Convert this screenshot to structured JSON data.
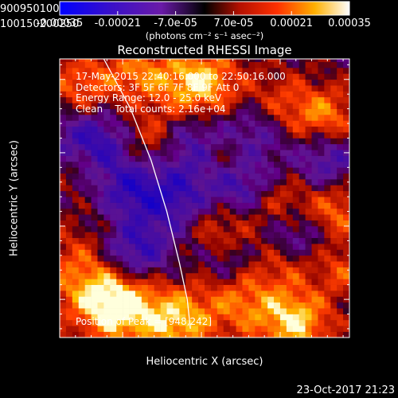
{
  "colorbar": {
    "tick_labels": [
      "-0.00035",
      "-0.00021",
      "-7.0e-05",
      "7.0e-05",
      "0.00021",
      "0.00035"
    ],
    "unit_label": "(photons cm⁻² s⁻¹ asec⁻²)",
    "range": [
      -0.00035,
      0.00035
    ]
  },
  "chart_data": {
    "type": "heatmap",
    "title": "Reconstructed RHESSI Image",
    "xlabel": "Heliocentric X (arcsec)",
    "ylabel": "Heliocentric Y (arcsec)",
    "xlim": [
      860,
      1044
    ],
    "ylim": [
      74,
      264
    ],
    "x_ticks": [
      900,
      950,
      1000
    ],
    "y_ticks": [
      100,
      150,
      200,
      250
    ],
    "x_tick_labels": [
      "900",
      "950",
      "1000"
    ],
    "y_tick_labels": [
      "100",
      "150",
      "200",
      "250"
    ],
    "limb_curve": [
      [
        888,
        266
      ],
      [
        905,
        230
      ],
      [
        918,
        195
      ],
      [
        928,
        160
      ],
      [
        936,
        125
      ],
      [
        941,
        100
      ],
      [
        943,
        80
      ]
    ],
    "hot_spots": [
      {
        "x": 898,
        "y": 96,
        "v": 1.0,
        "r": 18
      },
      {
        "x": 880,
        "y": 118,
        "v": 0.65,
        "r": 22
      },
      {
        "x": 935,
        "y": 85,
        "v": 0.8,
        "r": 16
      },
      {
        "x": 975,
        "y": 100,
        "v": 0.6,
        "r": 18
      },
      {
        "x": 1010,
        "y": 85,
        "v": 0.9,
        "r": 16
      },
      {
        "x": 948,
        "y": 246,
        "v": 1.0,
        "r": 18
      },
      {
        "x": 1000,
        "y": 230,
        "v": 0.55,
        "r": 16
      },
      {
        "x": 1030,
        "y": 225,
        "v": 0.6,
        "r": 14
      },
      {
        "x": 875,
        "y": 245,
        "v": 0.6,
        "r": 16
      },
      {
        "x": 910,
        "y": 255,
        "v": 0.55,
        "r": 14
      },
      {
        "x": 918,
        "y": 210,
        "v": 0.5,
        "r": 14
      },
      {
        "x": 872,
        "y": 190,
        "v": 0.45,
        "r": 12
      },
      {
        "x": 960,
        "y": 150,
        "v": 0.55,
        "r": 16
      },
      {
        "x": 1000,
        "y": 165,
        "v": 0.45,
        "r": 14
      },
      {
        "x": 1035,
        "y": 160,
        "v": 0.6,
        "r": 14
      },
      {
        "x": 1040,
        "y": 120,
        "v": 0.45,
        "r": 12
      },
      {
        "x": 1005,
        "y": 125,
        "v": 0.35,
        "r": 12
      },
      {
        "x": 965,
        "y": 200,
        "v": 0.4,
        "r": 12
      }
    ],
    "cold_spots": [
      {
        "x": 880,
        "y": 205,
        "v": 0.85,
        "r": 18
      },
      {
        "x": 905,
        "y": 130,
        "v": 0.95,
        "r": 16
      },
      {
        "x": 935,
        "y": 168,
        "v": 0.7,
        "r": 18
      },
      {
        "x": 945,
        "y": 210,
        "v": 0.6,
        "r": 16
      },
      {
        "x": 985,
        "y": 215,
        "v": 0.6,
        "r": 16
      },
      {
        "x": 975,
        "y": 175,
        "v": 0.6,
        "r": 14
      },
      {
        "x": 1030,
        "y": 195,
        "v": 0.55,
        "r": 14
      },
      {
        "x": 1010,
        "y": 145,
        "v": 0.5,
        "r": 14
      },
      {
        "x": 965,
        "y": 125,
        "v": 0.45,
        "r": 12
      },
      {
        "x": 905,
        "y": 175,
        "v": 0.55,
        "r": 14
      }
    ]
  },
  "info": {
    "time": "17-May-2015 22:40:16.000 to 22:50:16.000",
    "detectors": "Detectors: 3F 5F 6F 7F 8F 9F Att 0",
    "energy": "Energy Range: 12.0 - 25.0 keV",
    "clean": "Clean    Total counts: 2.16e+04",
    "peak": "Position of Peak = [948,242]"
  },
  "timestamp": "23-Oct-2017 21:23"
}
